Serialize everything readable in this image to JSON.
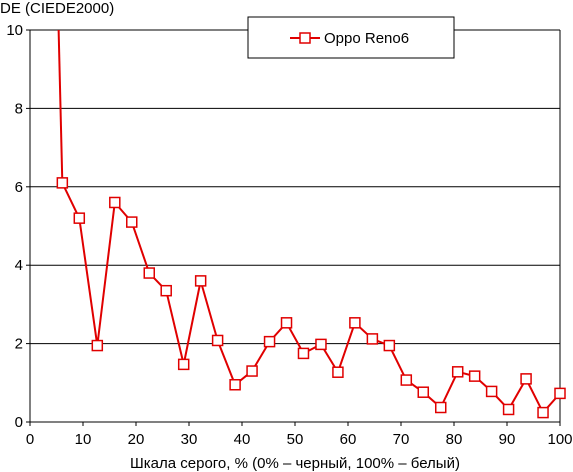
{
  "chart_data": {
    "type": "line",
    "ylabel": "DE (CIEDE2000)",
    "xlabel": "Шкала серого, % (0% – черный, 100% – белый)",
    "xlim": [
      0,
      100
    ],
    "ylim": [
      0,
      10
    ],
    "x_ticks": [
      0,
      10,
      20,
      30,
      40,
      50,
      60,
      70,
      80,
      90,
      100
    ],
    "y_ticks": [
      0,
      2,
      4,
      6,
      8,
      10
    ],
    "grid": "horizontal",
    "legend": "top-center",
    "series": [
      {
        "name": "Oppo Reno6",
        "color": "#e00000",
        "marker": "open-square",
        "intro_line": [
          [
            5.4,
            10
          ],
          [
            6.1,
            6.1
          ]
        ],
        "x": [
          6.1,
          9.3,
          12.7,
          16.0,
          19.2,
          22.5,
          25.7,
          29.0,
          32.2,
          35.4,
          38.7,
          41.9,
          45.2,
          48.4,
          51.6,
          54.9,
          58.1,
          61.3,
          64.6,
          67.8,
          71.0,
          74.2,
          77.5,
          80.7,
          83.9,
          87.1,
          90.3,
          93.6,
          96.8,
          100.0
        ],
        "y": [
          6.1,
          5.2,
          1.95,
          5.6,
          5.1,
          3.8,
          3.35,
          1.47,
          3.6,
          2.08,
          0.95,
          1.3,
          2.05,
          2.53,
          1.75,
          1.98,
          1.27,
          2.53,
          2.12,
          1.95,
          1.07,
          0.76,
          0.37,
          1.28,
          1.17,
          0.78,
          0.32,
          1.1,
          0.24,
          0.73
        ]
      }
    ]
  }
}
